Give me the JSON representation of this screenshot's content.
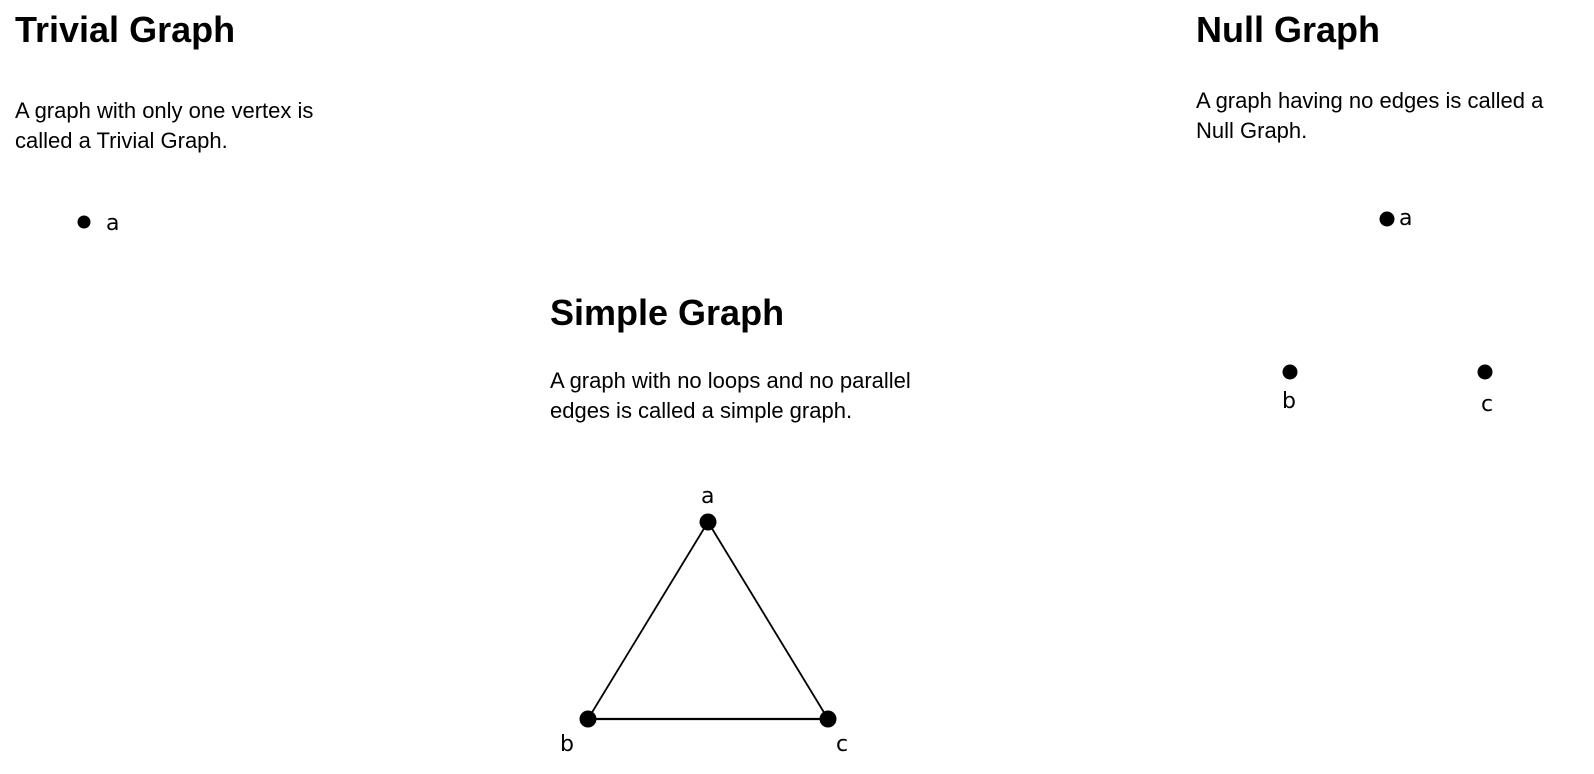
{
  "trivial": {
    "title": "Trivial Graph",
    "description": "A graph with only one vertex is called a Trivial Graph.",
    "vertices": [
      "a"
    ],
    "edges": []
  },
  "null_graph": {
    "title": "Null Graph",
    "description": "A graph having no edges is called a Null Graph.",
    "vertices": [
      "a",
      "b",
      "c"
    ],
    "edges": []
  },
  "simple": {
    "title": "Simple Graph",
    "description": "A graph with no loops and no parallel edges is called a simple graph.",
    "vertices": [
      "a",
      "b",
      "c"
    ],
    "edges": [
      [
        "a",
        "b"
      ],
      [
        "a",
        "c"
      ],
      [
        "b",
        "c"
      ]
    ]
  }
}
